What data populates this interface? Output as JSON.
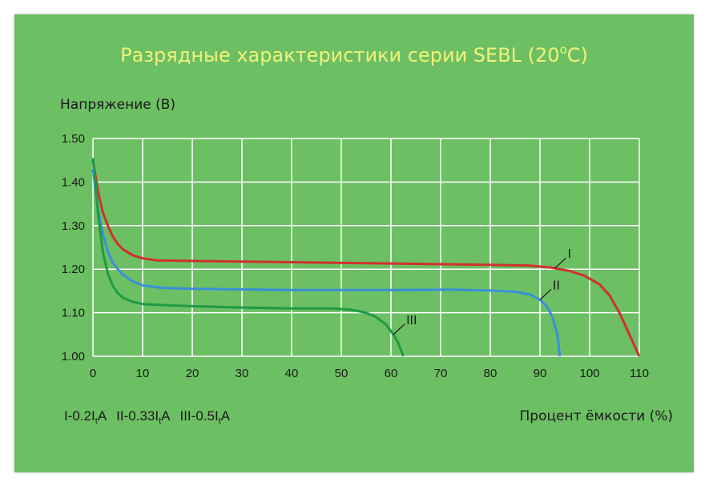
{
  "chart_data": {
    "type": "line",
    "title": "Разрядные характеристики серии SEBL (20",
    "title_sup": "o",
    "title_end": "C)",
    "ylabel": "Напряжение (В)",
    "xlabel": "Процент ёмкости (%)",
    "xlim": [
      0,
      110
    ],
    "ylim": [
      1.0,
      1.5
    ],
    "x_ticks": [
      0,
      10,
      20,
      30,
      40,
      50,
      60,
      70,
      80,
      90,
      100,
      110
    ],
    "y_ticks": [
      "1.00",
      "1.10",
      "1.20",
      "1.30",
      "1.40",
      "1.50"
    ],
    "grid": true,
    "background_color": "#6cbf63",
    "grid_color": "#ffffff",
    "title_color": "#f2f27a",
    "legend_items": [
      {
        "pre": "I-0.2I",
        "sub": "t",
        "post": "A"
      },
      {
        "pre": "II-0.33I",
        "sub": "t",
        "post": "A"
      },
      {
        "pre": "III-0.5I",
        "sub": "t",
        "post": "A"
      }
    ],
    "series": [
      {
        "label": "I",
        "color": "#d0312d",
        "points": [
          [
            0,
            1.45
          ],
          [
            1,
            1.38
          ],
          [
            2,
            1.33
          ],
          [
            3,
            1.3
          ],
          [
            4,
            1.275
          ],
          [
            5,
            1.258
          ],
          [
            6,
            1.246
          ],
          [
            8,
            1.232
          ],
          [
            10,
            1.225
          ],
          [
            13,
            1.22
          ],
          [
            20,
            1.219
          ],
          [
            40,
            1.216
          ],
          [
            60,
            1.213
          ],
          [
            80,
            1.21
          ],
          [
            88,
            1.208
          ],
          [
            92,
            1.204
          ],
          [
            96,
            1.196
          ],
          [
            99,
            1.185
          ],
          [
            102,
            1.165
          ],
          [
            104,
            1.14
          ],
          [
            106,
            1.1
          ],
          [
            108,
            1.05
          ],
          [
            110,
            1.0
          ]
        ]
      },
      {
        "label": "II",
        "color": "#3a8fd9",
        "points": [
          [
            0,
            1.43
          ],
          [
            1,
            1.34
          ],
          [
            2,
            1.28
          ],
          [
            3,
            1.24
          ],
          [
            4,
            1.215
          ],
          [
            5,
            1.2
          ],
          [
            6,
            1.188
          ],
          [
            8,
            1.172
          ],
          [
            10,
            1.163
          ],
          [
            14,
            1.157
          ],
          [
            20,
            1.155
          ],
          [
            40,
            1.152
          ],
          [
            60,
            1.152
          ],
          [
            72,
            1.153
          ],
          [
            80,
            1.151
          ],
          [
            85,
            1.148
          ],
          [
            88,
            1.142
          ],
          [
            90,
            1.13
          ],
          [
            91.5,
            1.113
          ],
          [
            92.5,
            1.09
          ],
          [
            93.5,
            1.05
          ],
          [
            94,
            1.0
          ]
        ]
      },
      {
        "label": "III",
        "color": "#1f9a45",
        "points": [
          [
            0,
            1.455
          ],
          [
            0.5,
            1.4
          ],
          [
            1,
            1.33
          ],
          [
            2,
            1.24
          ],
          [
            3,
            1.19
          ],
          [
            4,
            1.162
          ],
          [
            5,
            1.145
          ],
          [
            6,
            1.135
          ],
          [
            8,
            1.125
          ],
          [
            10,
            1.12
          ],
          [
            15,
            1.117
          ],
          [
            20,
            1.115
          ],
          [
            30,
            1.112
          ],
          [
            40,
            1.11
          ],
          [
            48,
            1.11
          ],
          [
            52,
            1.107
          ],
          [
            55,
            1.1
          ],
          [
            57,
            1.09
          ],
          [
            59,
            1.073
          ],
          [
            60.5,
            1.05
          ],
          [
            61.5,
            1.03
          ],
          [
            62.5,
            1.0
          ]
        ]
      }
    ],
    "annotations": [
      {
        "text": "I",
        "series": 0,
        "at_x": 93
      },
      {
        "text": "II",
        "series": 1,
        "at_x": 90
      },
      {
        "text": "III",
        "series": 2,
        "at_x": 60.5
      }
    ]
  }
}
